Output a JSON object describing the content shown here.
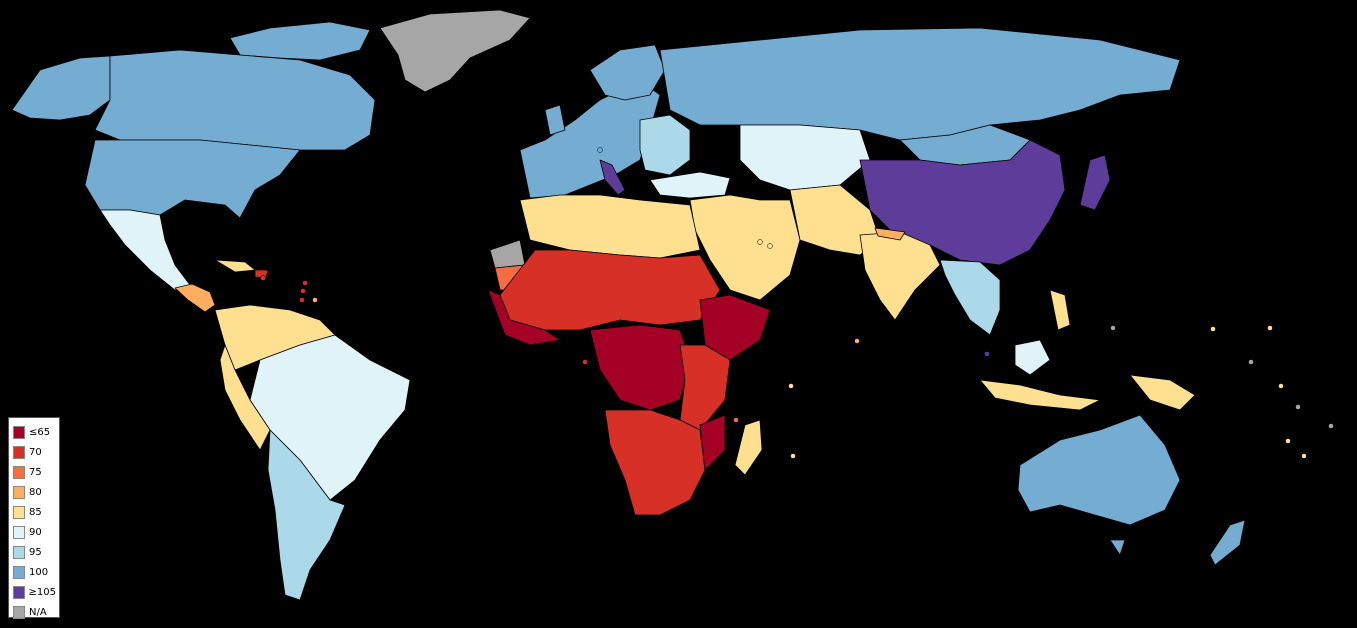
{
  "map": {
    "colors": {
      "le65": "#a50026",
      "c70": "#d73027",
      "c75": "#f46d43",
      "c80": "#fdae61",
      "c85": "#fee090",
      "c90": "#e0f3f8",
      "c95": "#abd9e9",
      "c100": "#74add1",
      "ge105": "#5e3c99",
      "na": "#a6a6a6",
      "background": "#000000"
    },
    "legend": [
      {
        "label": "≤65",
        "color": "#a50026"
      },
      {
        "label": "70",
        "color": "#d73027"
      },
      {
        "label": "75",
        "color": "#f46d43"
      },
      {
        "label": "80",
        "color": "#fdae61"
      },
      {
        "label": "85",
        "color": "#fee090"
      },
      {
        "label": "90",
        "color": "#e0f3f8"
      },
      {
        "label": "95",
        "color": "#abd9e9"
      },
      {
        "label": "100",
        "color": "#74add1"
      },
      {
        "label": "≥105",
        "color": "#5e3c99"
      },
      {
        "label": "N/A",
        "color": "#a6a6a6"
      }
    ]
  }
}
